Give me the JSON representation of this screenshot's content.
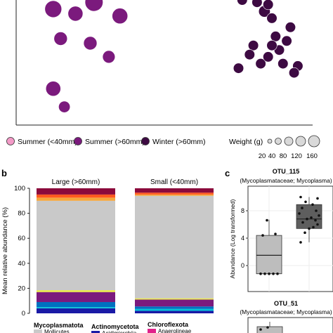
{
  "colors": {
    "summer_small": "#f39ac7",
    "summer_large": "#7b1a7d",
    "winter_large": "#3d0a42",
    "gray": "#c9c9c9",
    "axis": "#222222",
    "box_light": "#bdbdbd",
    "box_dark": "#5e5e5e"
  },
  "panel_a_legend": {
    "groups": [
      {
        "label": "Summer (<40mm)",
        "color": "#f39ac7"
      },
      {
        "label": "Summer (>60mm)",
        "color": "#7b1a7d"
      },
      {
        "label": "Winter (>60mm)",
        "color": "#3d0a42"
      }
    ],
    "weight_title": "Weight (g)",
    "weight_values": [
      "20",
      "40",
      "80",
      "120",
      "160"
    ]
  },
  "panel_b": {
    "letter": "b",
    "ylabel": "Mean relative abundance (%)",
    "ticks": [
      "0",
      "20",
      "40",
      "60",
      "80",
      "100"
    ],
    "legend": [
      {
        "phylum": "Mycoplasmatota",
        "class": "Mollicutes",
        "color": "#c9c9c9"
      },
      {
        "phylum": "Actinomycetota",
        "class": "Acidimicrobiia",
        "color": "#1a1aa6"
      },
      {
        "phylum": "Chloroflexota",
        "class": "Anaerolineae",
        "color": "#e0218a"
      }
    ]
  },
  "panel_c": {
    "letter": "c",
    "plots": [
      {
        "title": "OTU_115",
        "subtitle": "(Mycoplasmataceae; Mycoplasma)"
      },
      {
        "title": "OTU_51",
        "subtitle": "(Mycoplasmataceae; Mycoplasma)"
      }
    ],
    "ylabel": "Abundance (Log transformed)",
    "ticks": [
      "0",
      "4",
      "8"
    ]
  },
  "chart_data": [
    {
      "type": "scatter",
      "panel": "a",
      "series": [
        {
          "name": "Summer (>60mm)",
          "points": [
            {
              "x": 1.0,
              "y": 9.6,
              "w": 100
            },
            {
              "x": 1.6,
              "y": 9.4,
              "w": 70
            },
            {
              "x": 2.1,
              "y": 9.9,
              "w": 120
            },
            {
              "x": 2.8,
              "y": 9.3,
              "w": 80
            },
            {
              "x": 1.2,
              "y": 8.3,
              "w": 50
            },
            {
              "x": 2.0,
              "y": 8.1,
              "w": 50
            },
            {
              "x": 2.5,
              "y": 7.5,
              "w": 40
            },
            {
              "x": 1.0,
              "y": 6.1,
              "w": 70
            },
            {
              "x": 1.3,
              "y": 5.3,
              "w": 30
            }
          ]
        },
        {
          "name": "Winter (>60mm)",
          "points": [
            {
              "x": 6.1,
              "y": 10.0,
              "w": 20
            },
            {
              "x": 6.5,
              "y": 9.9,
              "w": 20
            },
            {
              "x": 6.7,
              "y": 9.5,
              "w": 30
            },
            {
              "x": 6.9,
              "y": 9.2,
              "w": 20
            },
            {
              "x": 6.8,
              "y": 9.8,
              "w": 20
            },
            {
              "x": 7.0,
              "y": 8.4,
              "w": 20
            },
            {
              "x": 7.3,
              "y": 8.2,
              "w": 20
            },
            {
              "x": 7.4,
              "y": 8.8,
              "w": 20
            },
            {
              "x": 6.4,
              "y": 8.0,
              "w": 20
            },
            {
              "x": 6.3,
              "y": 7.6,
              "w": 20
            },
            {
              "x": 6.6,
              "y": 7.2,
              "w": 20
            },
            {
              "x": 6.8,
              "y": 7.5,
              "w": 20
            },
            {
              "x": 7.1,
              "y": 7.8,
              "w": 20
            },
            {
              "x": 7.2,
              "y": 7.2,
              "w": 20
            },
            {
              "x": 6.0,
              "y": 7.0,
              "w": 20
            },
            {
              "x": 7.6,
              "y": 7.1,
              "w": 20
            },
            {
              "x": 7.5,
              "y": 6.8,
              "w": 20
            },
            {
              "x": 6.9,
              "y": 8.0,
              "w": 20
            }
          ]
        }
      ],
      "xlim": [
        0,
        8
      ],
      "ylim": [
        4.5,
        10
      ]
    },
    {
      "type": "bar",
      "panel": "b",
      "stacked": true,
      "categories": [
        "Large (>60mm)",
        "Small (<40mm)"
      ],
      "ylim": [
        0,
        100
      ],
      "segments": [
        {
          "color": "#1a1aa6",
          "values": [
            4,
            2
          ]
        },
        {
          "color": "#00c4d6",
          "values": [
            1,
            1.5
          ]
        },
        {
          "color": "#0070c0",
          "values": [
            4,
            2
          ]
        },
        {
          "color": "#7b1a7d",
          "values": [
            8,
            5.5
          ]
        },
        {
          "color": "#e8e84a",
          "values": [
            1.5,
            1
          ]
        },
        {
          "color": "#c9c9c9",
          "values": [
            71.5,
            82
          ]
        },
        {
          "color": "#f4a63c",
          "values": [
            2.5,
            1
          ]
        },
        {
          "color": "#ff5a1f",
          "values": [
            2.5,
            1.5
          ]
        },
        {
          "color": "#8b0a3c",
          "values": [
            5,
            3.5
          ]
        }
      ]
    },
    {
      "type": "box",
      "panel": "c",
      "title": "OTU_115",
      "ylim": [
        -1,
        10.5
      ],
      "groups": [
        {
          "color": "#bdbdbd",
          "min": -1.2,
          "q1": -1.2,
          "median": 1.5,
          "q3": 4.4,
          "max": 6.7,
          "points": [
            -1.2,
            -1.2,
            -1.2,
            -1.2,
            -1.2,
            4.4,
            4.6,
            6.6
          ]
        },
        {
          "color": "#5e5e5e",
          "min": 3.4,
          "q1": 5.4,
          "median": 6.8,
          "q3": 8.9,
          "max": 10.0,
          "points": [
            3.4,
            4.8,
            5.4,
            5.6,
            6.0,
            6.3,
            6.6,
            6.8,
            7.0,
            7.3,
            7.6,
            8.0,
            8.4,
            8.9,
            9.3,
            9.8,
            10.0
          ]
        }
      ]
    }
  ]
}
